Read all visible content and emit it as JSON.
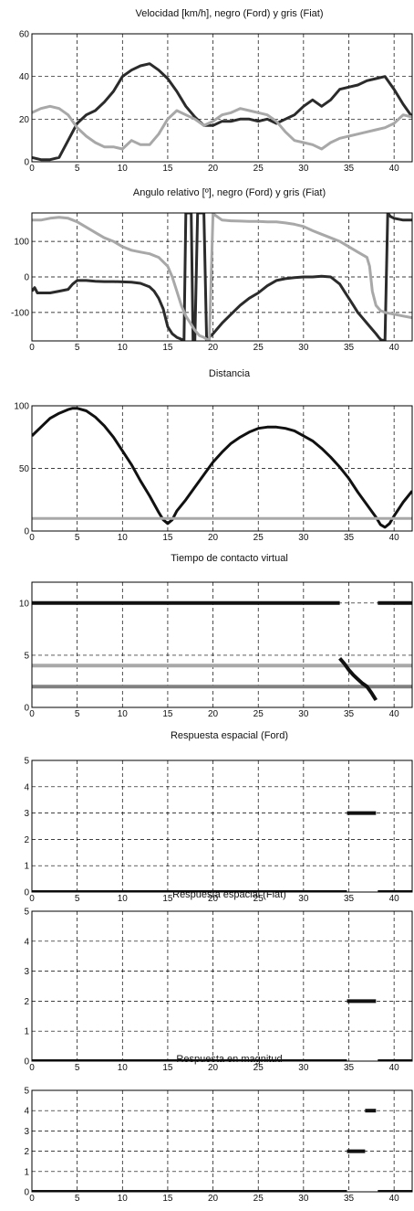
{
  "colors": {
    "black": "#2b2b2b",
    "gray": "#a8a8a8",
    "mid_gray": "#808080"
  },
  "chart_data": [
    {
      "id": "p1",
      "type": "line",
      "title": "Velocidad [km/h], negro (Ford) y gris (Fiat)",
      "xlim": [
        0,
        42
      ],
      "ylim": [
        0,
        60
      ],
      "xticks": [
        0,
        5,
        10,
        15,
        20,
        25,
        30,
        35,
        40
      ],
      "yticks": [
        0,
        20,
        40,
        60
      ],
      "grid": true,
      "series": [
        {
          "color": "#2b2b2b",
          "x": [
            0,
            1,
            2,
            3,
            4,
            5,
            6,
            7,
            8,
            9,
            10,
            11,
            12,
            13,
            14,
            15,
            16,
            17,
            18,
            19,
            20,
            21,
            22,
            23,
            24,
            25,
            26,
            27,
            28,
            29,
            30,
            31,
            32,
            33,
            34,
            35,
            36,
            37,
            38,
            39,
            40,
            41,
            42
          ],
          "y": [
            2,
            1,
            1,
            2,
            10,
            18,
            22,
            24,
            28,
            33,
            40,
            43,
            45,
            46,
            43,
            39,
            33,
            26,
            21,
            17,
            17,
            19,
            19,
            20,
            20,
            19,
            20,
            18,
            20,
            22,
            26,
            29,
            26,
            29,
            34,
            35,
            36,
            38,
            39,
            40,
            34,
            27,
            21
          ]
        },
        {
          "color": "#a8a8a8",
          "x": [
            0,
            1,
            2,
            3,
            4,
            5,
            6,
            7,
            8,
            9,
            10,
            11,
            12,
            13,
            14,
            15,
            16,
            17,
            18,
            19,
            20,
            21,
            22,
            23,
            24,
            25,
            26,
            27,
            28,
            29,
            30,
            31,
            32,
            33,
            34,
            35,
            36,
            37,
            38,
            39,
            40,
            41,
            42
          ],
          "y": [
            23,
            25,
            26,
            25,
            22,
            16,
            12,
            9,
            7,
            7,
            6,
            10,
            8,
            8,
            13,
            20,
            24,
            22,
            20,
            17,
            19,
            22,
            23,
            25,
            24,
            23,
            22,
            19,
            14,
            10,
            9,
            8,
            6,
            9,
            11,
            12,
            13,
            14,
            15,
            16,
            18,
            22,
            21
          ]
        }
      ]
    },
    {
      "id": "p2",
      "type": "line",
      "title": "Angulo relativo [º], negro (Ford) y gris (Fiat)",
      "xlim": [
        0,
        42
      ],
      "ylim": [
        -180,
        180
      ],
      "xticks": [
        0,
        5,
        10,
        15,
        20,
        25,
        30,
        35,
        40
      ],
      "yticks": [
        -100,
        0,
        100
      ],
      "grid": true,
      "series": [
        {
          "color": "#2b2b2b",
          "x": [
            0,
            0.3,
            0.6,
            1,
            2,
            3,
            4,
            4.5,
            5,
            6,
            7,
            8,
            9,
            10,
            11,
            12,
            13,
            13.5,
            14,
            14.5,
            15,
            15.5,
            16,
            16.5,
            16.8,
            17,
            17.3,
            17.6,
            17.8,
            18,
            18.3,
            18.6,
            19,
            19.3,
            19.6,
            20,
            21,
            22,
            23,
            24,
            25,
            26,
            27,
            28,
            29,
            30,
            31,
            32,
            33,
            34,
            34.5,
            35,
            35.5,
            36,
            36.5,
            37,
            37.5,
            38,
            38.3,
            38.6,
            39,
            39.3,
            39.6,
            40,
            41,
            42
          ],
          "y": [
            -40,
            -30,
            -45,
            -45,
            -45,
            -40,
            -35,
            -20,
            -10,
            -10,
            -12,
            -13,
            -13,
            -14,
            -15,
            -18,
            -28,
            -40,
            -60,
            -90,
            -140,
            -160,
            -170,
            -175,
            -178,
            180,
            180,
            180,
            -178,
            -178,
            180,
            180,
            180,
            -178,
            -170,
            -160,
            -130,
            -105,
            -80,
            -60,
            -45,
            -25,
            -10,
            -5,
            -2,
            0,
            0,
            2,
            0,
            -20,
            -40,
            -60,
            -80,
            -100,
            -115,
            -130,
            -145,
            -160,
            -170,
            -178,
            -178,
            180,
            170,
            165,
            160,
            160
          ]
        },
        {
          "color": "#a8a8a8",
          "x": [
            0,
            1,
            2,
            3,
            4,
            5,
            6,
            7,
            8,
            9,
            10,
            11,
            12,
            13,
            14,
            15,
            15.5,
            16,
            16.5,
            17,
            18,
            18.5,
            19,
            19.3,
            19.6,
            20,
            21,
            22,
            23,
            24,
            25,
            26,
            27,
            28,
            29,
            30,
            31,
            32,
            33,
            34,
            35,
            36,
            37,
            37.3,
            37.6,
            38,
            38.5,
            39,
            40,
            41,
            42
          ],
          "y": [
            160,
            160,
            165,
            168,
            165,
            155,
            140,
            125,
            110,
            100,
            85,
            75,
            70,
            65,
            55,
            30,
            0,
            -40,
            -80,
            -110,
            -150,
            -165,
            -170,
            -175,
            -178,
            178,
            160,
            158,
            157,
            156,
            156,
            155,
            155,
            152,
            148,
            142,
            130,
            120,
            110,
            100,
            85,
            70,
            55,
            30,
            -40,
            -80,
            -95,
            -100,
            -105,
            -110,
            -115
          ]
        }
      ]
    },
    {
      "id": "p3",
      "type": "line",
      "title": "Distancia",
      "xlim": [
        0,
        42
      ],
      "ylim": [
        0,
        100
      ],
      "xticks": [
        0,
        5,
        10,
        15,
        20,
        25,
        30,
        35,
        40
      ],
      "yticks": [
        0,
        50,
        100
      ],
      "grid": true,
      "series": [
        {
          "color": "#111111",
          "x": [
            0,
            1,
            2,
            3,
            4,
            4.5,
            5,
            6,
            7,
            8,
            9,
            10,
            11,
            12,
            13,
            14,
            14.5,
            15,
            15.5,
            16,
            17,
            18,
            19,
            20,
            21,
            22,
            23,
            24,
            25,
            26,
            27,
            28,
            29,
            30,
            31,
            32,
            33,
            34,
            35,
            36,
            37,
            38,
            38.5,
            39,
            39.5,
            40,
            41,
            42
          ],
          "y": [
            76,
            83,
            90,
            94,
            97,
            98,
            98,
            96,
            91,
            84,
            75,
            64,
            53,
            40,
            28,
            15,
            9,
            6,
            9,
            16,
            25,
            35,
            45,
            55,
            63,
            70,
            75,
            79,
            82,
            83,
            83,
            82,
            80,
            76,
            72,
            66,
            59,
            51,
            42,
            31,
            21,
            11,
            5,
            3,
            6,
            12,
            23,
            32
          ]
        },
        {
          "color": "#a8a8a8",
          "x": [
            0,
            42
          ],
          "y": [
            10,
            10
          ]
        }
      ]
    },
    {
      "id": "p4",
      "type": "line",
      "title": "Tiempo de contacto virtual",
      "xlim": [
        0,
        42
      ],
      "ylim": [
        0,
        12
      ],
      "xticks": [
        0,
        5,
        10,
        15,
        20,
        25,
        30,
        35,
        40
      ],
      "yticks": [
        0,
        5,
        10
      ],
      "grid": true,
      "series": [
        {
          "color": "#a8a8a8",
          "x": [
            0,
            42
          ],
          "y": [
            4,
            4
          ]
        },
        {
          "color": "#808080",
          "x": [
            0,
            42
          ],
          "y": [
            2,
            2
          ]
        },
        {
          "color": "#111111",
          "x": [
            0,
            34
          ],
          "y": [
            10,
            10
          ]
        },
        {
          "color": "#111111",
          "x": [
            38.2,
            42
          ],
          "y": [
            10,
            10
          ]
        },
        {
          "color": "#111111",
          "x": [
            34,
            34.5,
            35,
            35.5,
            36,
            36.5,
            37,
            37.5,
            38
          ],
          "y": [
            4.7,
            4.2,
            3.6,
            3.1,
            2.7,
            2.3,
            2.0,
            1.4,
            0.7
          ]
        }
      ]
    },
    {
      "id": "p5",
      "type": "line",
      "title": "Respuesta espacial (Ford)",
      "xlim": [
        0,
        42
      ],
      "ylim": [
        0,
        5
      ],
      "xticks": [
        0,
        5,
        10,
        15,
        20,
        25,
        30,
        35,
        40
      ],
      "yticks": [
        0,
        1,
        2,
        3,
        4,
        5
      ],
      "grid": true,
      "series": [
        {
          "color": "#111111",
          "x": [
            0,
            34.8
          ],
          "y": [
            0,
            0
          ]
        },
        {
          "color": "#111111",
          "x": [
            38.2,
            42
          ],
          "y": [
            0,
            0
          ]
        },
        {
          "color": "#111111",
          "x": [
            34.8,
            38
          ],
          "y": [
            3,
            3
          ]
        }
      ]
    },
    {
      "id": "p6",
      "type": "line",
      "title": "Respuesta espacial (Fiat)",
      "xlim": [
        0,
        42
      ],
      "ylim": [
        0,
        5
      ],
      "xticks": [
        0,
        5,
        10,
        15,
        20,
        25,
        30,
        35,
        40
      ],
      "yticks": [
        0,
        1,
        2,
        3,
        4,
        5
      ],
      "grid": true,
      "series": [
        {
          "color": "#111111",
          "x": [
            0,
            34.8
          ],
          "y": [
            0,
            0
          ]
        },
        {
          "color": "#111111",
          "x": [
            38.2,
            42
          ],
          "y": [
            0,
            0
          ]
        },
        {
          "color": "#111111",
          "x": [
            34.8,
            38
          ],
          "y": [
            2,
            2
          ]
        }
      ]
    },
    {
      "id": "p7",
      "type": "line",
      "title": "Respuesta en magnitud",
      "xlim": [
        0,
        42
      ],
      "ylim": [
        0,
        5
      ],
      "xticks": [
        0,
        5,
        10,
        15,
        20,
        25,
        30,
        35,
        40
      ],
      "yticks": [
        0,
        1,
        2,
        3,
        4,
        5
      ],
      "grid": true,
      "series": [
        {
          "color": "#111111",
          "x": [
            0,
            34.8
          ],
          "y": [
            0,
            0
          ]
        },
        {
          "color": "#111111",
          "x": [
            38.2,
            42
          ],
          "y": [
            0,
            0
          ]
        },
        {
          "color": "#111111",
          "x": [
            34.8,
            36.8
          ],
          "y": [
            2,
            2
          ]
        },
        {
          "color": "#111111",
          "x": [
            36.8,
            38
          ],
          "y": [
            4,
            4
          ]
        }
      ]
    }
  ]
}
